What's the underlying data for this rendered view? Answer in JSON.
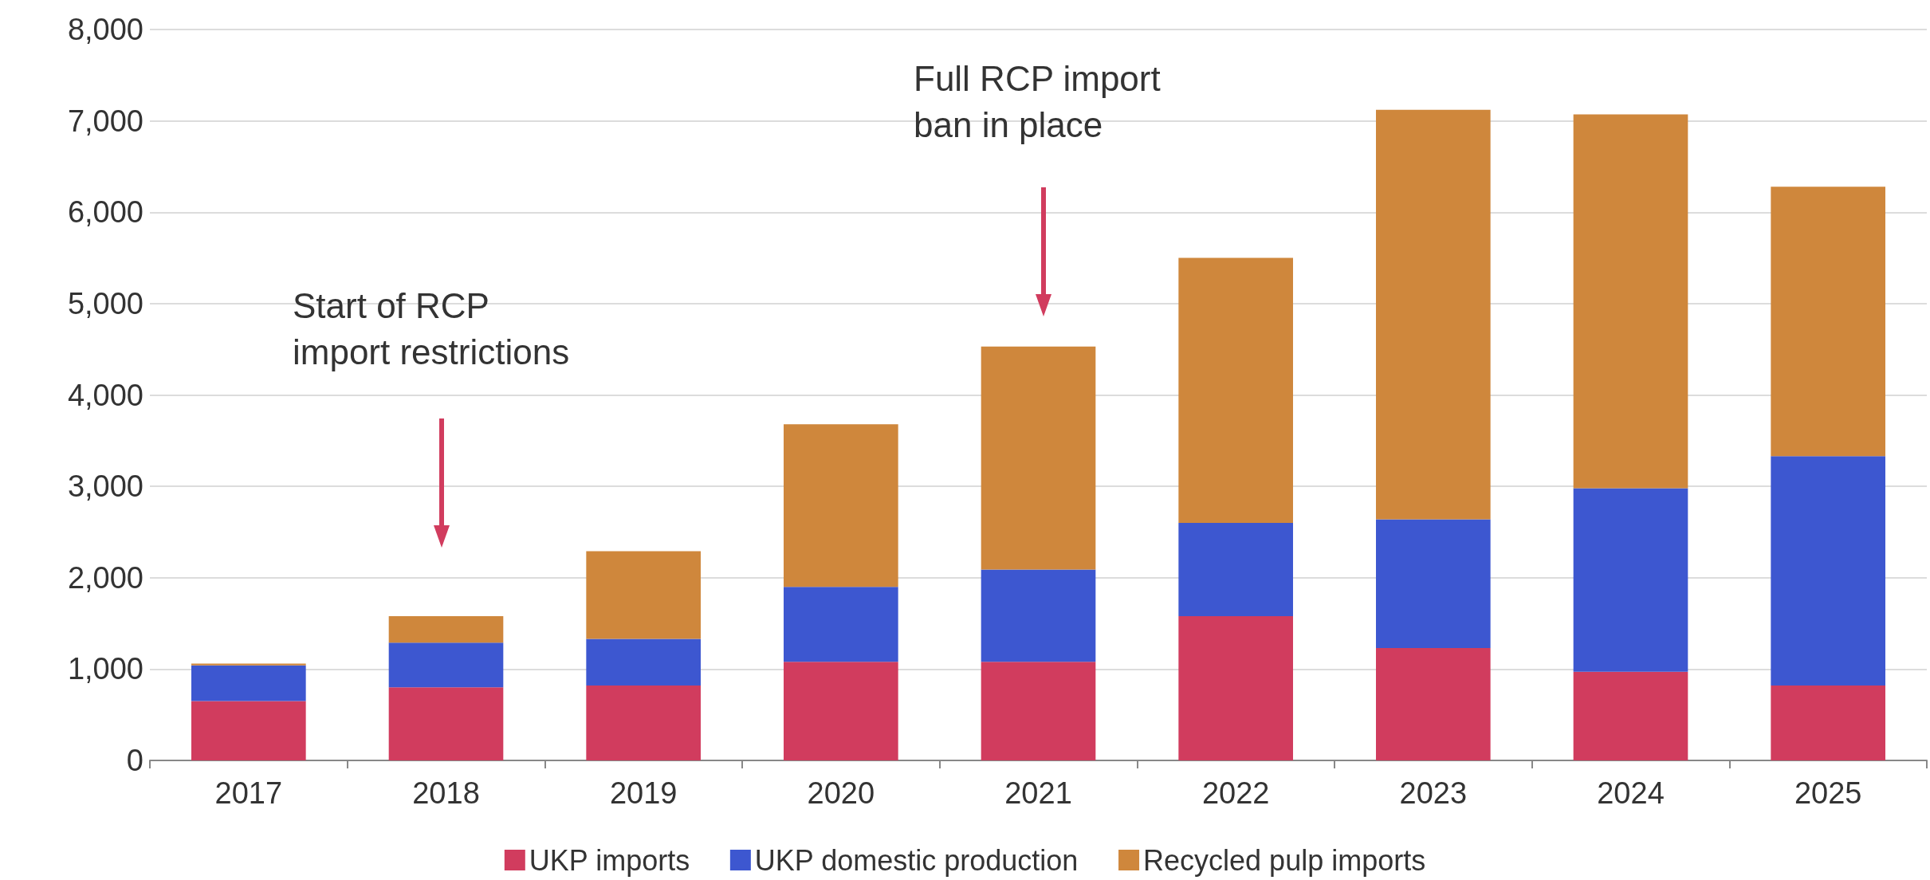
{
  "chart_data": {
    "type": "bar",
    "stacked": true,
    "categories": [
      "2017",
      "2018",
      "2019",
      "2020",
      "2021",
      "2022",
      "2023",
      "2024",
      "2025"
    ],
    "series": [
      {
        "name": "UKP imports",
        "color": "#d13c5e",
        "values": [
          650,
          800,
          820,
          1080,
          1080,
          1580,
          1230,
          970,
          820
        ]
      },
      {
        "name": "UKP domestic production",
        "color": "#3d57d0",
        "values": [
          390,
          490,
          510,
          820,
          1010,
          1020,
          1410,
          2010,
          2510
        ]
      },
      {
        "name": "Recycled pulp imports",
        "color": "#cf873c",
        "values": [
          20,
          290,
          960,
          1780,
          2440,
          2900,
          4480,
          4090,
          2950
        ]
      }
    ],
    "ylim": [
      0,
      8000
    ],
    "yticks": [
      0,
      {
        "value": 1000,
        "label": "1,000"
      },
      {
        "value": 2000,
        "label": "2,000"
      },
      {
        "value": 3000,
        "label": "3,000"
      },
      {
        "value": 4000,
        "label": "4,000"
      },
      {
        "value": 5000,
        "label": "5,000"
      },
      {
        "value": 6000,
        "label": "6,000"
      },
      {
        "value": 7000,
        "label": "7,000"
      },
      {
        "value": 8000,
        "label": "8,000"
      }
    ],
    "grid": "y",
    "legend": "bottom",
    "annotations": [
      "Start of RCP\nimport restrictions",
      "Full RCP import\nban in place"
    ]
  }
}
